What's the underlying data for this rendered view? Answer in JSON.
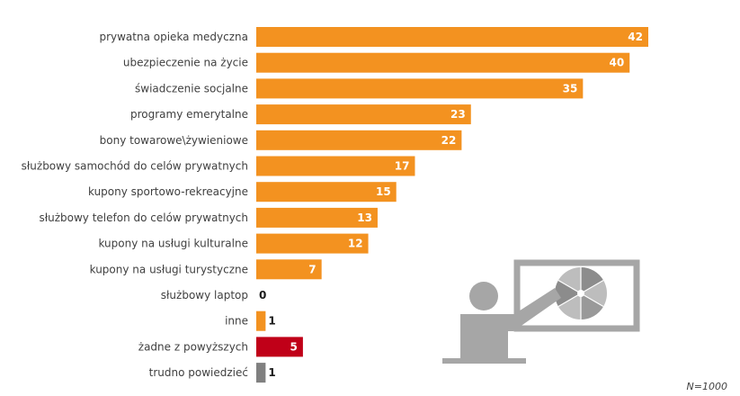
{
  "chart_data": {
    "type": "bar",
    "orientation": "horizontal",
    "categories": [
      "prywatna opieka medyczna",
      "ubezpieczenie na życie",
      "świadczenie socjalne",
      "programy emerytalne",
      "bony towarowe\\żywieniowe",
      "służbowy samochód do celów prywatnych",
      "kupony sportowo-rekreacyjne",
      "służbowy telefon do celów prywatnych",
      "kupony na usługi kulturalne",
      "kupony na usługi turystyczne",
      "służbowy laptop",
      "inne",
      "żadne z powyższych",
      "trudno powiedzieć"
    ],
    "values": [
      42,
      40,
      35,
      23,
      22,
      17,
      15,
      13,
      12,
      7,
      0,
      1,
      5,
      1
    ],
    "bar_colors": [
      "#f39220",
      "#f39220",
      "#f39220",
      "#f39220",
      "#f39220",
      "#f39220",
      "#f39220",
      "#f39220",
      "#f39220",
      "#f39220",
      "#f39220",
      "#f39220",
      "#c00018",
      "#808080"
    ],
    "value_label_inside_color": "#ffffff",
    "value_label_outside_color": "#1a1a1a",
    "xlim": [
      0,
      45
    ],
    "grid": false,
    "legend": "none"
  },
  "note": "N=1000",
  "illustration": {
    "name": "presenter-pointing-at-board-icon",
    "color": "#a6a6a6"
  }
}
